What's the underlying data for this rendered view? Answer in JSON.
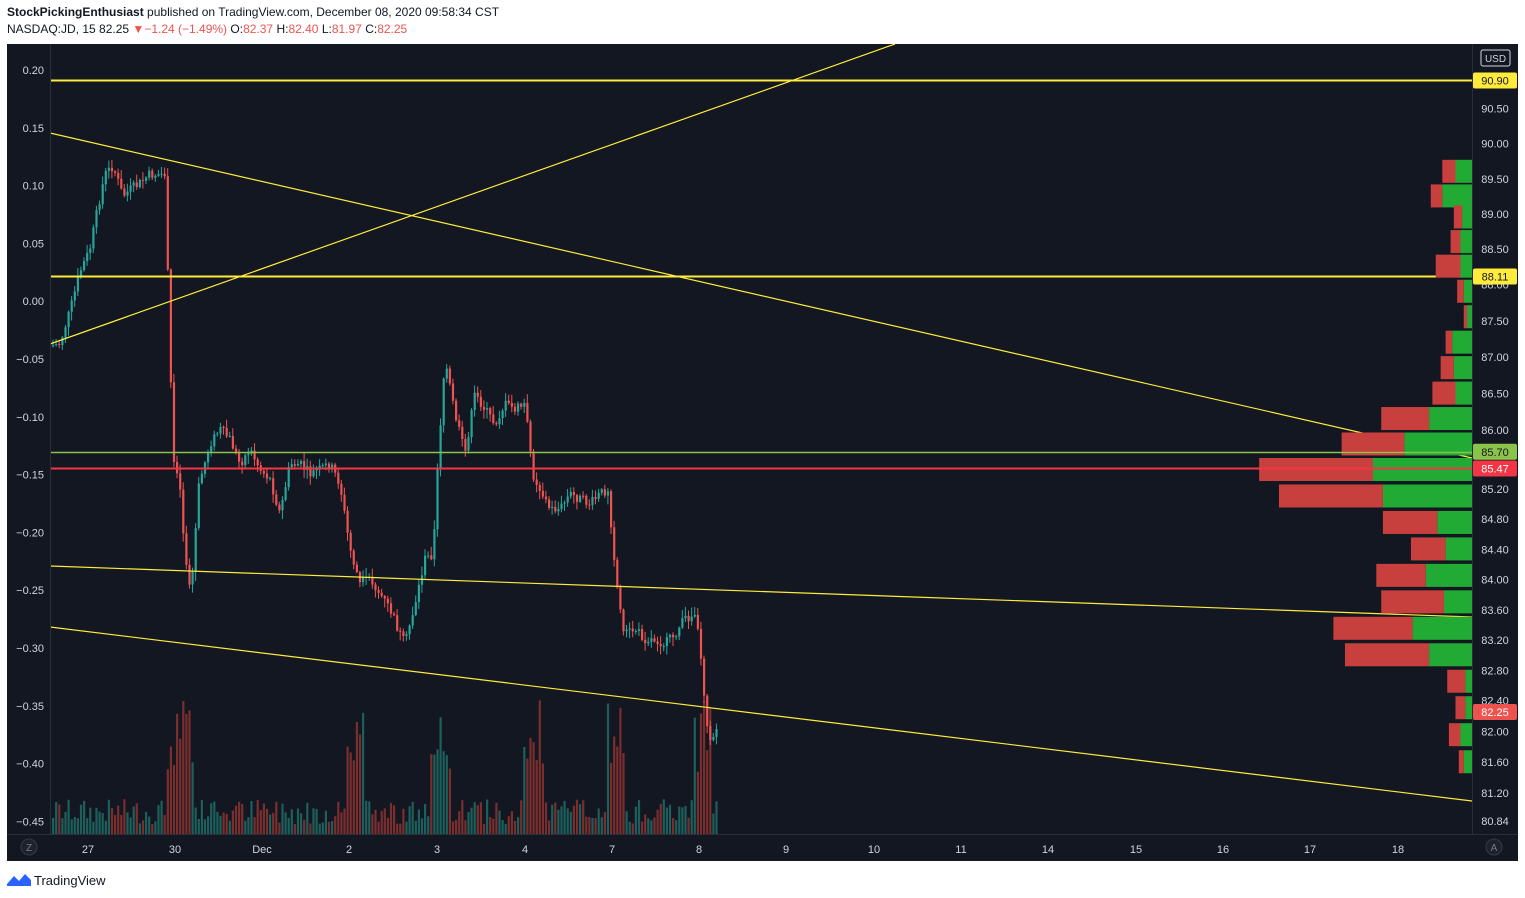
{
  "header": {
    "author": "StockPickingEnthusiast",
    "published_text": "published on TradingView.com, December 08, 2020 09:58:34 CST",
    "symbol": "NASDAQ:JD, 15",
    "last": "82.25",
    "change_arrow": "▼",
    "change": "−1.24 (−1.49%)",
    "o_label": "O:",
    "o": "82.37",
    "h_label": "H:",
    "h": "82.40",
    "l_label": "L:",
    "l": "81.97",
    "c_label": "C:",
    "c": "82.25"
  },
  "footer": {
    "brand": "TradingView"
  },
  "colors": {
    "background": "#131722",
    "up": "#26a69a",
    "down": "#ef5350",
    "trendline": "#ffeb3b",
    "support_green": "#8bc34a",
    "resistance_red": "#f23645",
    "vp_green": "#22ab34",
    "vp_red": "#c8403d"
  },
  "chart_data": {
    "type": "candlestick",
    "currency": "USD",
    "x_ticks": [
      "27",
      "30",
      "Dec",
      "2",
      "3",
      "4",
      "7",
      "8",
      "9",
      "10",
      "11",
      "14",
      "15",
      "16",
      "17",
      "18"
    ],
    "left_axis_ticks": [
      "0.20",
      "0.15",
      "0.10",
      "0.05",
      "0.00",
      "−0.05",
      "−0.10",
      "−0.15",
      "−0.20",
      "−0.25",
      "−0.30",
      "−0.35",
      "−0.40",
      "−0.45"
    ],
    "right_axis_ticks": [
      "90.50",
      "90.00",
      "89.50",
      "89.00",
      "88.50",
      "88.00",
      "87.50",
      "87.00",
      "86.50",
      "86.00",
      "85.20",
      "84.80",
      "84.40",
      "84.00",
      "83.60",
      "83.20",
      "82.80",
      "82.40",
      "82.00",
      "81.60",
      "81.20",
      "80.84"
    ],
    "right_axis_range": [
      80.84,
      90.9
    ],
    "price_labels": [
      {
        "value": "90.90",
        "kind": "horizontal-line"
      },
      {
        "value": "88.11",
        "kind": "horizontal-line"
      },
      {
        "value": "85.70",
        "kind": "support-line"
      },
      {
        "value": "85.47",
        "kind": "resistance-line"
      },
      {
        "value": "82.25",
        "kind": "last-price"
      }
    ],
    "corner_left": "Z",
    "corner_right": "A",
    "volume_profile": [
      {
        "price": 89.6,
        "up": 1.0,
        "down": 0.8
      },
      {
        "price": 89.25,
        "up": 1.8,
        "down": 0.7
      },
      {
        "price": 88.95,
        "up": 0.6,
        "down": 0.5
      },
      {
        "price": 88.6,
        "up": 0.7,
        "down": 0.6
      },
      {
        "price": 88.25,
        "up": 0.7,
        "down": 1.5
      },
      {
        "price": 87.9,
        "up": 0.5,
        "down": 0.4
      },
      {
        "price": 87.55,
        "up": 0.3,
        "down": 0.2
      },
      {
        "price": 87.2,
        "up": 1.2,
        "down": 0.4
      },
      {
        "price": 86.85,
        "up": 1.1,
        "down": 0.8
      },
      {
        "price": 86.5,
        "up": 1.0,
        "down": 1.4
      },
      {
        "price": 86.15,
        "up": 2.6,
        "down": 2.9
      },
      {
        "price": 85.8,
        "up": 4.1,
        "down": 3.8
      },
      {
        "price": 85.45,
        "up": 6.0,
        "down": 6.9
      },
      {
        "price": 85.1,
        "up": 5.4,
        "down": 6.3
      },
      {
        "price": 84.75,
        "up": 2.1,
        "down": 3.3
      },
      {
        "price": 84.4,
        "up": 1.6,
        "down": 2.1
      },
      {
        "price": 84.05,
        "up": 2.8,
        "down": 3.0
      },
      {
        "price": 83.7,
        "up": 1.7,
        "down": 3.8
      },
      {
        "price": 83.35,
        "up": 3.6,
        "down": 4.8
      },
      {
        "price": 83.0,
        "up": 2.6,
        "down": 5.1
      },
      {
        "price": 82.65,
        "up": 0.4,
        "down": 1.1
      },
      {
        "price": 82.3,
        "up": 0.4,
        "down": 0.6
      },
      {
        "price": 81.95,
        "up": 0.7,
        "down": 0.7
      },
      {
        "price": 81.6,
        "up": 0.5,
        "down": 0.3
      }
    ]
  }
}
